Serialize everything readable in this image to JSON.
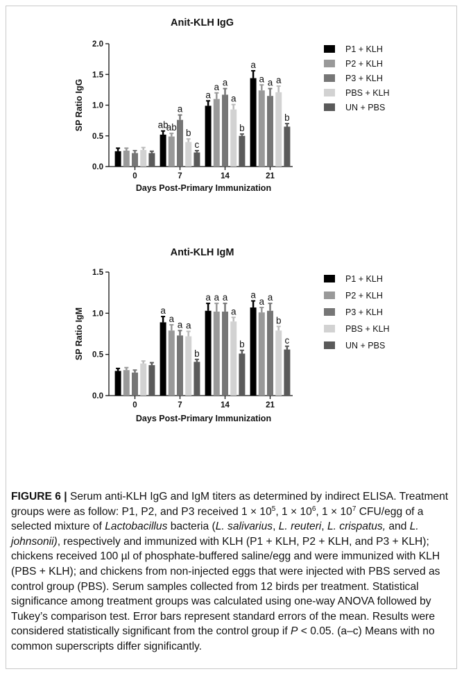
{
  "figure": {
    "caption": {
      "label": "FIGURE 6 |",
      "parts": [
        {
          "t": " Serum anti-KLH IgG and IgM titers as determined by indirect ELISA. Treatment groups were as follow: P1, P2, and P3 received 1 × 10"
        },
        {
          "sup": "5"
        },
        {
          "t": ", 1 × 10"
        },
        {
          "sup": "6"
        },
        {
          "t": ", 1 × 10"
        },
        {
          "sup": "7"
        },
        {
          "t": " CFU/egg of a selected mixture of "
        },
        {
          "i": "Lactobacillus"
        },
        {
          "t": " bacteria ("
        },
        {
          "i": "L. salivarius"
        },
        {
          "t": ", "
        },
        {
          "i": "L. reuteri"
        },
        {
          "t": ", "
        },
        {
          "i": "L. crispatus,"
        },
        {
          "t": " and "
        },
        {
          "i": "L. johnsonii)"
        },
        {
          "t": ", respectively and immunized with KLH (P1 + KLH, P2 + KLH, and P3 + KLH); chickens received 100 µl of phosphate-buffered saline/egg and were immunized with KLH (PBS + KLH); and chickens from non-injected eggs that were injected with PBS served as control group (PBS). Serum samples collected from 12 birds per treatment. Statistical significance among treatment groups was calculated using one-way ANOVA followed by Tukey’s comparison test. Error bars represent standard errors of the mean. Results were considered statistically significant from the control group if "
        },
        {
          "i": "P"
        },
        {
          "t": " < 0.05. (a–c) Means with no common superscripts differ significantly."
        }
      ]
    }
  },
  "chart_data": [
    {
      "type": "bar",
      "title": "Anit-KLH IgG",
      "xlabel": "Days Post-Primary Immunization",
      "ylabel": "SP Ratio IgG",
      "categories": [
        "0",
        "7",
        "14",
        "21"
      ],
      "ylim": [
        0,
        2.0
      ],
      "yticks": [
        "0.0",
        "0.5",
        "1.0",
        "1.5",
        "2.0"
      ],
      "grid": false,
      "legend_position": "right",
      "series": [
        {
          "name": "P1 + KLH",
          "color": "#000000",
          "values": [
            0.25,
            0.52,
            0.99,
            1.44
          ],
          "errors": [
            0.05,
            0.06,
            0.08,
            0.12
          ],
          "letters": [
            "",
            "ab",
            "a",
            "a"
          ]
        },
        {
          "name": "P2 + KLH",
          "color": "#999999",
          "values": [
            0.26,
            0.49,
            1.1,
            1.24
          ],
          "errors": [
            0.04,
            0.05,
            0.1,
            0.09
          ],
          "letters": [
            "",
            "ab",
            "a",
            "a"
          ]
        },
        {
          "name": "P3 + KLH",
          "color": "#767676",
          "values": [
            0.22,
            0.76,
            1.17,
            1.15
          ],
          "errors": [
            0.04,
            0.08,
            0.1,
            0.12
          ],
          "letters": [
            "",
            "a",
            "a",
            "a"
          ]
        },
        {
          "name": "PBS + KLH",
          "color": "#d2d2d2",
          "values": [
            0.27,
            0.4,
            0.93,
            1.21
          ],
          "errors": [
            0.04,
            0.05,
            0.08,
            0.1
          ],
          "letters": [
            "",
            "b",
            "a",
            "a"
          ]
        },
        {
          "name": "UN + PBS",
          "color": "#5a5a5a",
          "values": [
            0.22,
            0.23,
            0.5,
            0.65
          ],
          "errors": [
            0.03,
            0.03,
            0.03,
            0.05
          ],
          "letters": [
            "",
            "c",
            "b",
            "b"
          ]
        }
      ]
    },
    {
      "type": "bar",
      "title": "Anti-KLH IgM",
      "xlabel": "Days Post-Primary Immunization",
      "ylabel": "SP Ratio IgM",
      "categories": [
        "0",
        "7",
        "14",
        "21"
      ],
      "ylim": [
        0,
        1.5
      ],
      "yticks": [
        "0.0",
        "0.5",
        "1.0",
        "1.5"
      ],
      "grid": false,
      "legend_position": "right",
      "series": [
        {
          "name": "P1 + KLH",
          "color": "#000000",
          "values": [
            0.3,
            0.89,
            1.03,
            1.07
          ],
          "errors": [
            0.03,
            0.07,
            0.09,
            0.08
          ],
          "letters": [
            "",
            "a",
            "a",
            "a"
          ]
        },
        {
          "name": "P2 + KLH",
          "color": "#999999",
          "values": [
            0.31,
            0.79,
            1.02,
            1.01
          ],
          "errors": [
            0.03,
            0.07,
            0.1,
            0.06
          ],
          "letters": [
            "",
            "a",
            "a",
            "a"
          ]
        },
        {
          "name": "P3 + KLH",
          "color": "#767676",
          "values": [
            0.28,
            0.73,
            1.02,
            1.03
          ],
          "errors": [
            0.03,
            0.06,
            0.1,
            0.09
          ],
          "letters": [
            "",
            "a",
            "a",
            "a"
          ]
        },
        {
          "name": "PBS + KLH",
          "color": "#d2d2d2",
          "values": [
            0.39,
            0.72,
            0.9,
            0.79
          ],
          "errors": [
            0.03,
            0.06,
            0.05,
            0.05
          ],
          "letters": [
            "",
            "a",
            "a",
            "b"
          ]
        },
        {
          "name": "UN + PBS",
          "color": "#5a5a5a",
          "values": [
            0.37,
            0.41,
            0.51,
            0.56
          ],
          "errors": [
            0.03,
            0.03,
            0.04,
            0.04
          ],
          "letters": [
            "",
            "b",
            "b",
            "c"
          ]
        }
      ]
    }
  ]
}
